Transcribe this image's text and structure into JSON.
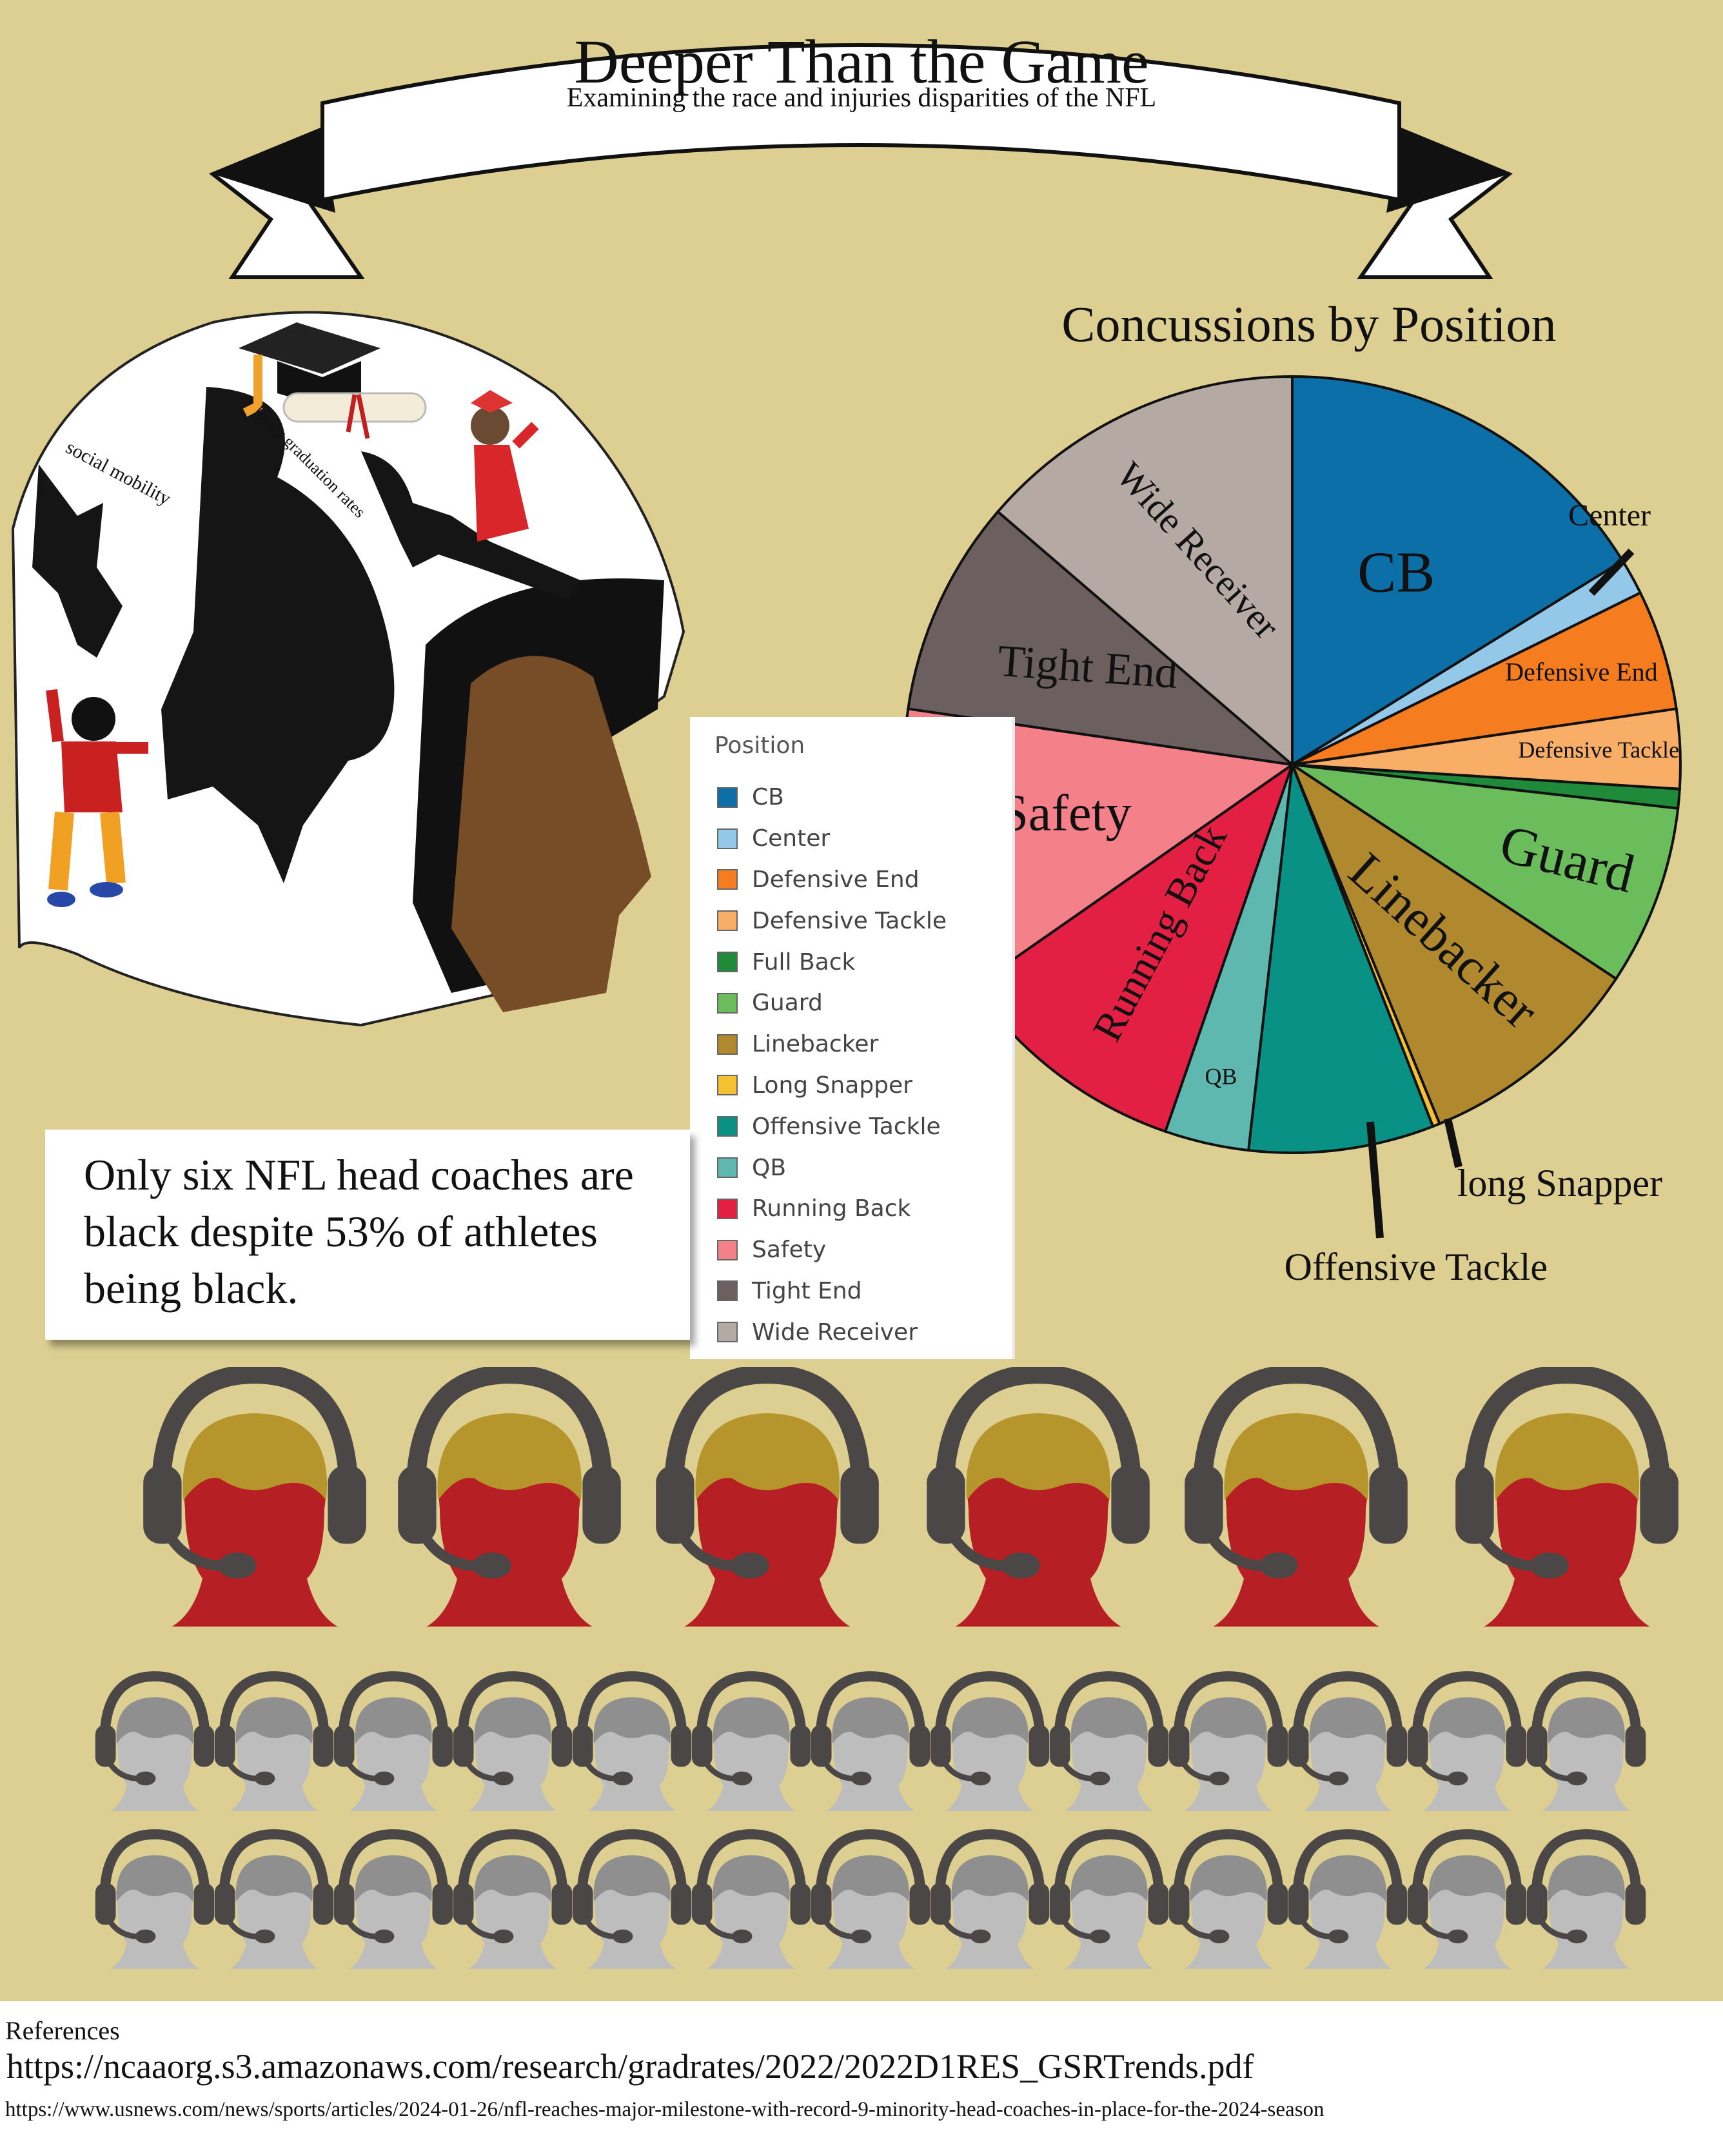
{
  "header": {
    "title": "Deeper Than the Game",
    "subtitle": "Examining the race and injuries disparities of the NFL"
  },
  "illustration": {
    "labels": [
      "social mobility",
      "lower graduation rates"
    ]
  },
  "callout": {
    "text": "Only six NFL head coaches are black despite 53% of athletes being black."
  },
  "coaches": {
    "black_head_coaches": 6,
    "other_head_coaches": 26,
    "colors": {
      "black_coach_face": "#b61f24",
      "black_coach_hair": "#b5952c",
      "other_coach_face": "#bdbdbd",
      "other_coach_hair": "#8f8f8f",
      "headset": "#4b4747"
    }
  },
  "chart_data": {
    "type": "pie",
    "title": "Concussions by Position",
    "legend_title": "Position",
    "legend_placement": "center-left",
    "slices": [
      {
        "label": "CB",
        "value": 16.2,
        "color": "#0c6fa8",
        "chart_label": "CB"
      },
      {
        "label": "Center",
        "value": 1.5,
        "color": "#94c8e8",
        "chart_label": "Center"
      },
      {
        "label": "Defensive End",
        "value": 5.0,
        "color": "#f57d1f",
        "chart_label": "Defensive End"
      },
      {
        "label": "Defensive Tackle",
        "value": 3.3,
        "color": "#f8ae67",
        "chart_label": "Defensive Tackle"
      },
      {
        "label": "Full Back",
        "value": 0.8,
        "color": "#1f8a3a",
        "chart_label": ""
      },
      {
        "label": "Guard",
        "value": 7.5,
        "color": "#6bbd5c",
        "chart_label": "Guard"
      },
      {
        "label": "Linebacker",
        "value": 9.5,
        "color": "#b0892e",
        "chart_label": "Linebacker"
      },
      {
        "label": "Long Snapper",
        "value": 0.3,
        "color": "#f5c032",
        "chart_label": "long Snapper"
      },
      {
        "label": "Offensive Tackle",
        "value": 7.7,
        "color": "#0a9185",
        "chart_label": "Offensive Tackle"
      },
      {
        "label": "QB",
        "value": 3.5,
        "color": "#5eb8b0",
        "chart_label": "QB"
      },
      {
        "label": "Running Back",
        "value": 10.0,
        "color": "#e41f44",
        "chart_label": "Running Back"
      },
      {
        "label": "Safety",
        "value": 12.0,
        "color": "#f4808a",
        "chart_label": "Safety"
      },
      {
        "label": "Tight End",
        "value": 9.0,
        "color": "#6b5f5f",
        "chart_label": "Tight End"
      },
      {
        "label": "Wide Receiver",
        "value": 13.7,
        "color": "#b5a9a4",
        "chart_label": "Wide Receiver"
      }
    ]
  },
  "references": {
    "heading": "References",
    "links": [
      "https://ncaaorg.s3.amazonaws.com/research/gradrates/2022/2022D1RES_GSRTrends.pdf",
      "https://www.usnews.com/news/sports/articles/2024-01-26/nfl-reaches-major-milestone-with-record-9-minority-head-coaches-in-place-for-the-2024-season"
    ]
  }
}
